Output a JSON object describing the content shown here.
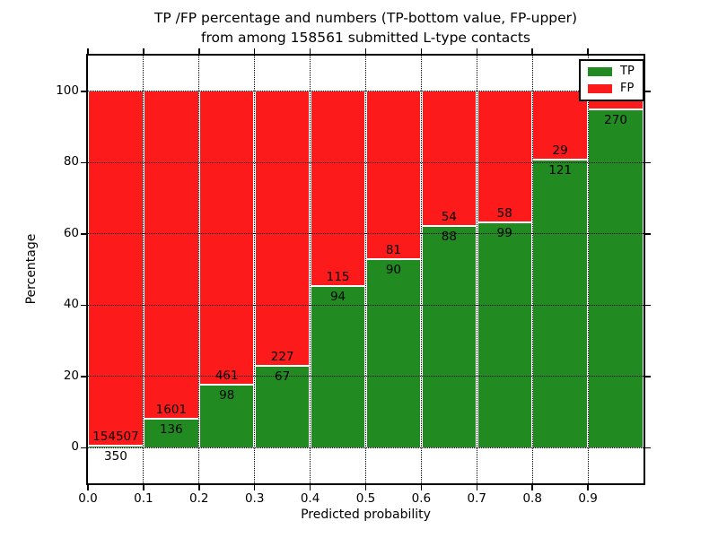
{
  "figure": {
    "title_line1": "TP /FP percentage and numbers (TP-bottom value, FP-upper)",
    "title_line2": "from among 158561 submitted L-type contacts",
    "xlabel": "Predicted probability",
    "ylabel": "Percentage"
  },
  "legend": {
    "position": "upper right",
    "items": [
      {
        "label": "TP",
        "color": "#218b21"
      },
      {
        "label": "FP",
        "color": "#fc1a1a"
      }
    ]
  },
  "chart_data": {
    "type": "bar",
    "stacked": true,
    "normalized_to_percent": true,
    "title": "TP /FP percentage and numbers (TP-bottom value, FP-upper) from among 158561 submitted L-type contacts",
    "total_submitted": 158561,
    "xlabel": "Predicted probability",
    "ylabel": "Percentage",
    "xlim": [
      0.0,
      1.0
    ],
    "ylim": [
      -10,
      110
    ],
    "xticks": [
      "0.0",
      "0.1",
      "0.2",
      "0.3",
      "0.4",
      "0.5",
      "0.6",
      "0.7",
      "0.8",
      "0.9"
    ],
    "yticks": [
      0,
      20,
      40,
      60,
      80,
      100
    ],
    "grid": "dotted",
    "legend_position": "upper right",
    "colors": {
      "tp": "#218b21",
      "fp": "#fc1a1a",
      "bar_edge": "#ffffff"
    },
    "bins": [
      {
        "range": "0.0-0.1",
        "tp": 350,
        "fp": 154507,
        "tp_percent": 0.23,
        "tp_label": "350",
        "fp_label": "154507"
      },
      {
        "range": "0.1-0.2",
        "tp": 136,
        "fp": 1601,
        "tp_percent": 7.83,
        "tp_label": "136",
        "fp_label": "1601"
      },
      {
        "range": "0.2-0.3",
        "tp": 98,
        "fp": 461,
        "tp_percent": 17.53,
        "tp_label": "98",
        "fp_label": "461"
      },
      {
        "range": "0.3-0.4",
        "tp": 67,
        "fp": 227,
        "tp_percent": 22.79,
        "tp_label": "67",
        "fp_label": "227"
      },
      {
        "range": "0.4-0.5",
        "tp": 94,
        "fp": 115,
        "tp_percent": 44.98,
        "tp_label": "94",
        "fp_label": "115"
      },
      {
        "range": "0.5-0.6",
        "tp": 90,
        "fp": 81,
        "tp_percent": 52.63,
        "tp_label": "90",
        "fp_label": "81"
      },
      {
        "range": "0.6-0.7",
        "tp": 88,
        "fp": 54,
        "tp_percent": 61.97,
        "tp_label": "88",
        "fp_label": "54"
      },
      {
        "range": "0.7-0.8",
        "tp": 99,
        "fp": 58,
        "tp_percent": 63.06,
        "tp_label": "99",
        "fp_label": "58"
      },
      {
        "range": "0.8-0.9",
        "tp": 121,
        "fp": 29,
        "tp_percent": 80.67,
        "tp_label": "121",
        "fp_label": "29"
      },
      {
        "range": "0.9-1.0",
        "tp": 270,
        "fp": null,
        "tp_percent": 94.74,
        "tp_label": "270",
        "fp_label": ""
      }
    ]
  }
}
